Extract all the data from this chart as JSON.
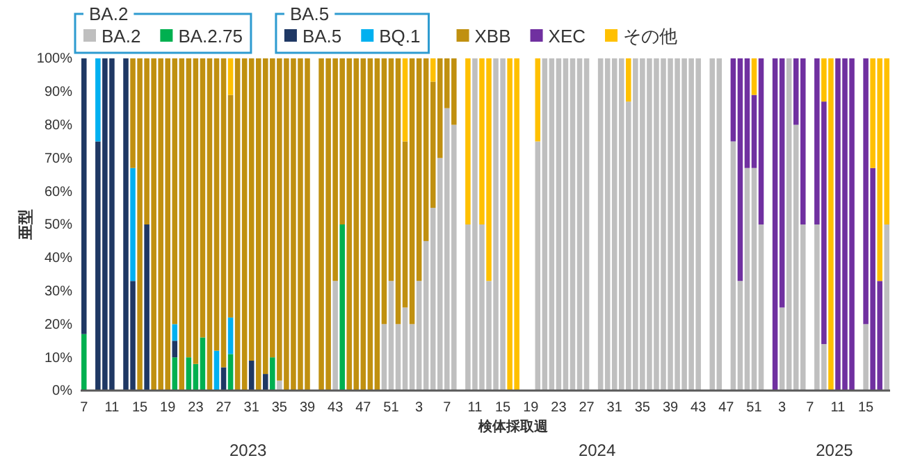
{
  "chart_data": {
    "type": "bar",
    "stacked": true,
    "ylabel": "亜型",
    "xlabel": "検体採取週",
    "annotations": [
      "BA.2",
      "BA.5",
      "2023",
      "2024",
      "2025"
    ],
    "legend": "top",
    "ylim": [
      0,
      100
    ],
    "yticks": [
      {
        "value": 0,
        "label": "0%"
      },
      {
        "value": 10,
        "label": "10%"
      },
      {
        "value": 20,
        "label": "20%"
      },
      {
        "value": 30,
        "label": "30%"
      },
      {
        "value": 40,
        "label": "40%"
      },
      {
        "value": 50,
        "label": "50%"
      },
      {
        "value": 60,
        "label": "60%"
      },
      {
        "value": 70,
        "label": "70%"
      },
      {
        "value": 80,
        "label": "80%"
      },
      {
        "value": 90,
        "label": "90%"
      },
      {
        "value": 100,
        "label": "100%"
      }
    ],
    "categories": [
      "7",
      null,
      null,
      null,
      "11",
      null,
      null,
      null,
      "15",
      null,
      null,
      null,
      "19",
      null,
      null,
      null,
      "23",
      null,
      null,
      null,
      "27",
      null,
      null,
      null,
      "31",
      null,
      null,
      null,
      "35",
      null,
      null,
      null,
      "39",
      null,
      null,
      null,
      "43",
      null,
      null,
      null,
      "47",
      null,
      null,
      null,
      "51",
      null,
      null,
      null,
      "3",
      null,
      null,
      null,
      "7",
      null,
      null,
      null,
      "11",
      null,
      null,
      null,
      "15",
      null,
      null,
      null,
      "19",
      null,
      null,
      null,
      "23",
      null,
      null,
      null,
      "27",
      null,
      null,
      null,
      "31",
      null,
      null,
      null,
      "35",
      null,
      null,
      null,
      "39",
      null,
      null,
      null,
      "43",
      null,
      null,
      null,
      "47",
      null,
      null,
      null,
      "51",
      null,
      null,
      null,
      "3",
      null,
      null,
      null,
      "7",
      null,
      null,
      null,
      "11",
      null,
      null,
      null,
      "15",
      null,
      null,
      null
    ],
    "series": [
      {
        "name": "BA.2",
        "color": "#bfbfbf",
        "values": [
          null,
          null,
          null,
          null,
          null,
          null,
          null,
          null,
          null,
          null,
          null,
          null,
          null,
          null,
          null,
          null,
          null,
          null,
          null,
          null,
          null,
          null,
          null,
          null,
          null,
          null,
          null,
          null,
          3,
          null,
          null,
          null,
          null,
          null,
          null,
          null,
          33,
          null,
          null,
          null,
          null,
          null,
          null,
          20,
          33,
          20,
          25,
          20,
          33,
          45,
          55,
          70,
          85,
          80,
          null,
          50,
          100,
          50,
          33,
          100,
          100,
          null,
          null,
          null,
          null,
          75,
          100,
          100,
          100,
          100,
          100,
          100,
          100,
          null,
          100,
          100,
          100,
          100,
          87,
          100,
          100,
          100,
          100,
          100,
          100,
          100,
          100,
          100,
          100,
          null,
          100,
          100,
          null,
          75,
          33,
          67,
          67,
          50,
          null,
          null,
          25,
          100,
          80,
          50,
          null,
          50,
          14,
          null,
          null,
          null,
          null,
          null,
          20,
          null,
          null,
          50
        ]
      },
      {
        "name": "BA.2.75",
        "color": "#00b050",
        "values": [
          17,
          null,
          null,
          null,
          null,
          null,
          null,
          null,
          null,
          null,
          null,
          null,
          null,
          10,
          null,
          10,
          8,
          16,
          null,
          null,
          null,
          11,
          null,
          null,
          null,
          null,
          null,
          10,
          null,
          null,
          null,
          null,
          null,
          null,
          null,
          null,
          null,
          50,
          null,
          null,
          null,
          null,
          null,
          null,
          null,
          null,
          null,
          null,
          null,
          null,
          null,
          null,
          null,
          null,
          null,
          null,
          null,
          null,
          null,
          null,
          null,
          null,
          null,
          null,
          null,
          null,
          null,
          null,
          null,
          null,
          null,
          null,
          null,
          null,
          null,
          null,
          null,
          null,
          null,
          null,
          null,
          null,
          null,
          null,
          null,
          null,
          null,
          null,
          null,
          null,
          null,
          null,
          null,
          null,
          null,
          null,
          null,
          null,
          null,
          null,
          null,
          null,
          null,
          null,
          null,
          null,
          null,
          null,
          null,
          null,
          null,
          null,
          null,
          null,
          null,
          null
        ]
      },
      {
        "name": "BA.5",
        "color": "#1f3864",
        "values": [
          83,
          null,
          75,
          100,
          100,
          null,
          100,
          33,
          null,
          50,
          null,
          null,
          null,
          5,
          null,
          null,
          null,
          null,
          null,
          null,
          7,
          null,
          null,
          null,
          9,
          null,
          5,
          null,
          null,
          null,
          null,
          null,
          null,
          null,
          null,
          null,
          null,
          null,
          null,
          null,
          null,
          null,
          null,
          null,
          null,
          null,
          null,
          null,
          null,
          null,
          null,
          null,
          null,
          null,
          null,
          null,
          null,
          null,
          null,
          null,
          null,
          null,
          null,
          null,
          null,
          null,
          null,
          null,
          null,
          null,
          null,
          null,
          null,
          null,
          null,
          null,
          null,
          null,
          null,
          null,
          null,
          null,
          null,
          null,
          null,
          null,
          null,
          null,
          null,
          null,
          null,
          null,
          null,
          null,
          null,
          null,
          null,
          null,
          null,
          null,
          null,
          null,
          null,
          null,
          null,
          null,
          null,
          null,
          null,
          null,
          null,
          null,
          null,
          null,
          null,
          null
        ]
      },
      {
        "name": "BQ.1",
        "color": "#00b0f0",
        "values": [
          null,
          null,
          25,
          null,
          null,
          null,
          null,
          34,
          null,
          null,
          null,
          null,
          null,
          5,
          null,
          null,
          null,
          null,
          null,
          12,
          null,
          11,
          null,
          null,
          null,
          null,
          null,
          null,
          null,
          null,
          null,
          null,
          null,
          null,
          null,
          null,
          null,
          null,
          null,
          null,
          null,
          null,
          null,
          null,
          null,
          null,
          null,
          null,
          null,
          null,
          null,
          null,
          null,
          null,
          null,
          null,
          null,
          null,
          null,
          null,
          null,
          null,
          null,
          null,
          null,
          null,
          null,
          null,
          null,
          null,
          null,
          null,
          null,
          null,
          null,
          null,
          null,
          null,
          null,
          null,
          null,
          null,
          null,
          null,
          null,
          null,
          null,
          null,
          null,
          null,
          null,
          null,
          null,
          null,
          null,
          null,
          null,
          null,
          null,
          null,
          null,
          null,
          null,
          null,
          null,
          null,
          null,
          null,
          null,
          null,
          null,
          null,
          null,
          null,
          null,
          null
        ]
      },
      {
        "name": "XBB",
        "color": "#c09010",
        "values": [
          null,
          null,
          null,
          null,
          null,
          null,
          null,
          33,
          100,
          50,
          100,
          100,
          100,
          80,
          100,
          90,
          92,
          84,
          100,
          88,
          93,
          67,
          100,
          100,
          91,
          100,
          95,
          90,
          97,
          100,
          100,
          100,
          100,
          null,
          100,
          100,
          67,
          50,
          100,
          100,
          100,
          100,
          100,
          80,
          67,
          80,
          50,
          80,
          67,
          55,
          38,
          30,
          15,
          20,
          null,
          null,
          null,
          null,
          null,
          null,
          null,
          null,
          null,
          null,
          null,
          null,
          null,
          null,
          null,
          null,
          null,
          null,
          null,
          null,
          null,
          null,
          null,
          null,
          null,
          null,
          null,
          null,
          null,
          null,
          null,
          null,
          null,
          null,
          null,
          null,
          null,
          null,
          null,
          null,
          null,
          null,
          null,
          null,
          null,
          null,
          null,
          null,
          null,
          null,
          null,
          null,
          null,
          null,
          null,
          null,
          null,
          null,
          null,
          null,
          null,
          null
        ]
      },
      {
        "name": "XEC",
        "color": "#7030a0",
        "values": [
          null,
          null,
          null,
          null,
          null,
          null,
          null,
          null,
          null,
          null,
          null,
          null,
          null,
          null,
          null,
          null,
          null,
          null,
          null,
          null,
          null,
          null,
          null,
          null,
          null,
          null,
          null,
          null,
          null,
          null,
          null,
          null,
          null,
          null,
          null,
          null,
          null,
          null,
          null,
          null,
          null,
          null,
          null,
          null,
          null,
          null,
          null,
          null,
          null,
          null,
          null,
          null,
          null,
          null,
          null,
          null,
          null,
          null,
          null,
          null,
          null,
          null,
          null,
          null,
          null,
          null,
          null,
          null,
          null,
          null,
          null,
          null,
          null,
          null,
          null,
          null,
          null,
          null,
          null,
          null,
          null,
          null,
          null,
          null,
          null,
          null,
          null,
          null,
          null,
          null,
          null,
          null,
          null,
          25,
          67,
          33,
          22,
          50,
          null,
          100,
          75,
          null,
          20,
          50,
          null,
          50,
          73,
          null,
          100,
          100,
          100,
          null,
          80,
          67,
          33,
          null
        ]
      },
      {
        "name": "その他",
        "color": "#ffc000",
        "values": [
          null,
          null,
          null,
          null,
          null,
          null,
          null,
          null,
          null,
          null,
          null,
          null,
          null,
          null,
          null,
          null,
          null,
          null,
          null,
          null,
          null,
          11,
          null,
          null,
          null,
          null,
          null,
          null,
          null,
          null,
          null,
          null,
          null,
          null,
          null,
          null,
          null,
          null,
          null,
          null,
          null,
          null,
          null,
          null,
          null,
          null,
          25,
          null,
          null,
          null,
          7,
          null,
          null,
          null,
          null,
          50,
          null,
          50,
          67,
          null,
          null,
          100,
          100,
          null,
          null,
          25,
          null,
          null,
          null,
          null,
          null,
          null,
          null,
          null,
          null,
          null,
          null,
          null,
          13,
          null,
          null,
          null,
          null,
          null,
          null,
          null,
          null,
          null,
          null,
          null,
          null,
          null,
          null,
          null,
          null,
          null,
          11,
          null,
          null,
          null,
          null,
          null,
          null,
          null,
          null,
          null,
          13,
          100,
          null,
          null,
          null,
          null,
          null,
          33,
          67,
          50
        ]
      }
    ]
  }
}
